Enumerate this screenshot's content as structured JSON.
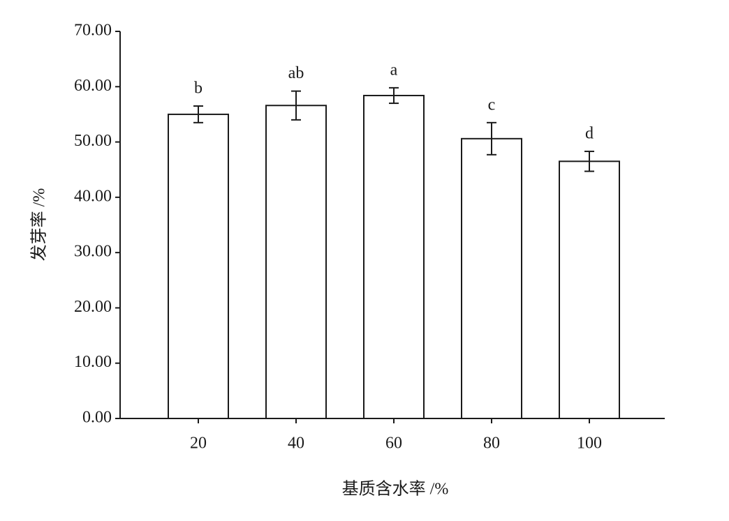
{
  "chart_data": {
    "type": "bar",
    "x_label": "基质含水率 /%",
    "y_label": "发芽率 /%",
    "categories": [
      "20",
      "40",
      "60",
      "80",
      "100"
    ],
    "values": [
      55.0,
      56.6,
      58.4,
      50.6,
      46.5
    ],
    "errors": [
      1.5,
      2.6,
      1.4,
      2.9,
      1.8
    ],
    "annotations": [
      "b",
      "ab",
      "a",
      "c",
      "d"
    ],
    "color": "#ffffff",
    "ylim": [
      0,
      70
    ],
    "yticks": [
      {
        "value": 0,
        "label": "0.00"
      },
      {
        "value": 10,
        "label": "10.00"
      },
      {
        "value": 20,
        "label": "20.00"
      },
      {
        "value": 30,
        "label": "30.00"
      },
      {
        "value": 40,
        "label": "40.00"
      },
      {
        "value": 50,
        "label": "50.00"
      },
      {
        "value": 60,
        "label": "60.00"
      },
      {
        "value": 70,
        "label": "70.00"
      }
    ],
    "grid": false
  }
}
